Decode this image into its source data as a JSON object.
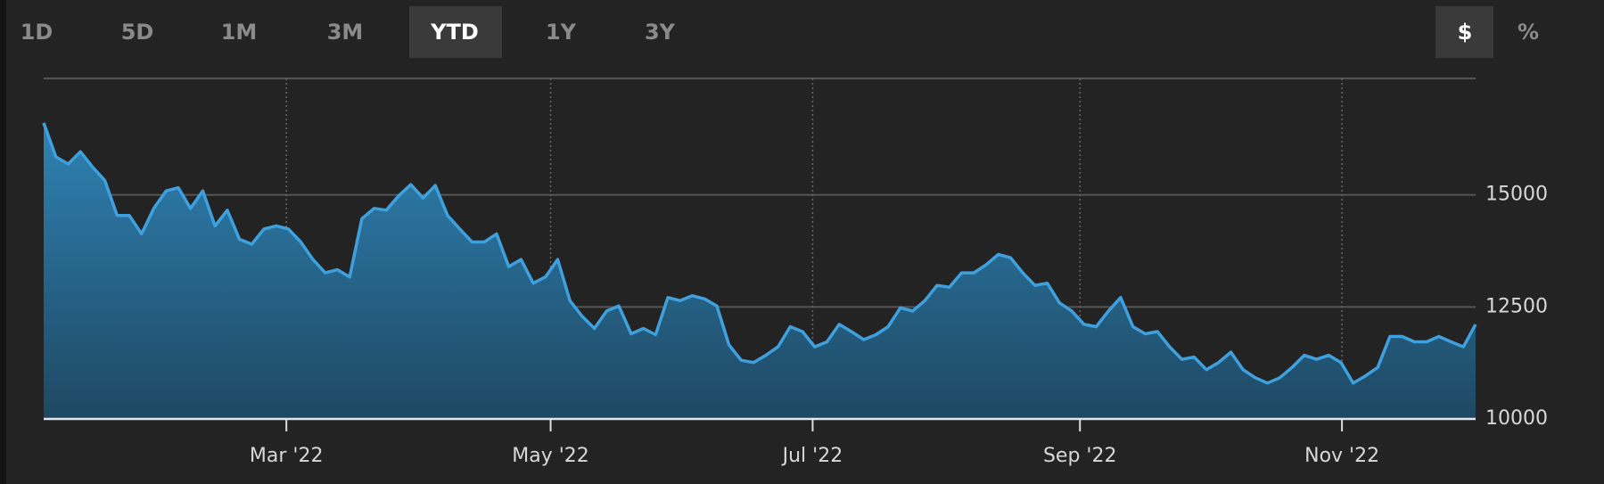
{
  "toolbar": {
    "tabs": [
      "1D",
      "5D",
      "1M",
      "3M",
      "YTD",
      "1Y",
      "3Y"
    ],
    "active_tab": "YTD",
    "units": [
      "$",
      "%"
    ],
    "active_unit": "$"
  },
  "chart_data": {
    "type": "area",
    "series": [
      {
        "color": "#3ea0dd",
        "values": [
          16607,
          15850,
          15690,
          15965,
          15620,
          15320,
          14540,
          14540,
          14130,
          14700,
          15090,
          15160,
          14700,
          15090,
          14310,
          14660,
          14010,
          13900,
          14240,
          14310,
          14240,
          13950,
          13560,
          13260,
          13330,
          13170,
          14470,
          14700,
          14660,
          14980,
          15230,
          14930,
          15210,
          14540,
          14240,
          13950,
          13950,
          14130,
          13400,
          13560,
          13030,
          13170,
          13560,
          12640,
          12290,
          12020,
          12410,
          12520,
          11900,
          12020,
          11880,
          12710,
          12640,
          12750,
          12680,
          12520,
          11650,
          11310,
          11260,
          11420,
          11610,
          12060,
          11950,
          11610,
          11720,
          12110,
          11950,
          11770,
          11880,
          12060,
          12480,
          12410,
          12640,
          12980,
          12940,
          13260,
          13260,
          13440,
          13670,
          13600,
          13260,
          12980,
          13030,
          12590,
          12410,
          12110,
          12060,
          12410,
          12710,
          12060,
          11900,
          11950,
          11610,
          11330,
          11380,
          11100,
          11260,
          11490,
          11100,
          10920,
          10800,
          10920,
          11150,
          11420,
          11330,
          11420,
          11260,
          10800,
          10960,
          11150,
          11840,
          11840,
          11720,
          11720,
          11840,
          11720,
          11610,
          12110
        ]
      }
    ],
    "xlim": [
      0,
      117
    ],
    "xticks": [
      {
        "value": 19.83,
        "label": "Mar '22"
      },
      {
        "value": 41.42,
        "label": "May '22"
      },
      {
        "value": 62.83,
        "label": "Jul '22"
      },
      {
        "value": 84.67,
        "label": "Sep '22"
      },
      {
        "value": 106.08,
        "label": "Nov '22"
      }
    ],
    "ylim": [
      10000,
      17600
    ],
    "yticks": [
      10000,
      12500,
      15000
    ],
    "grid": true
  }
}
